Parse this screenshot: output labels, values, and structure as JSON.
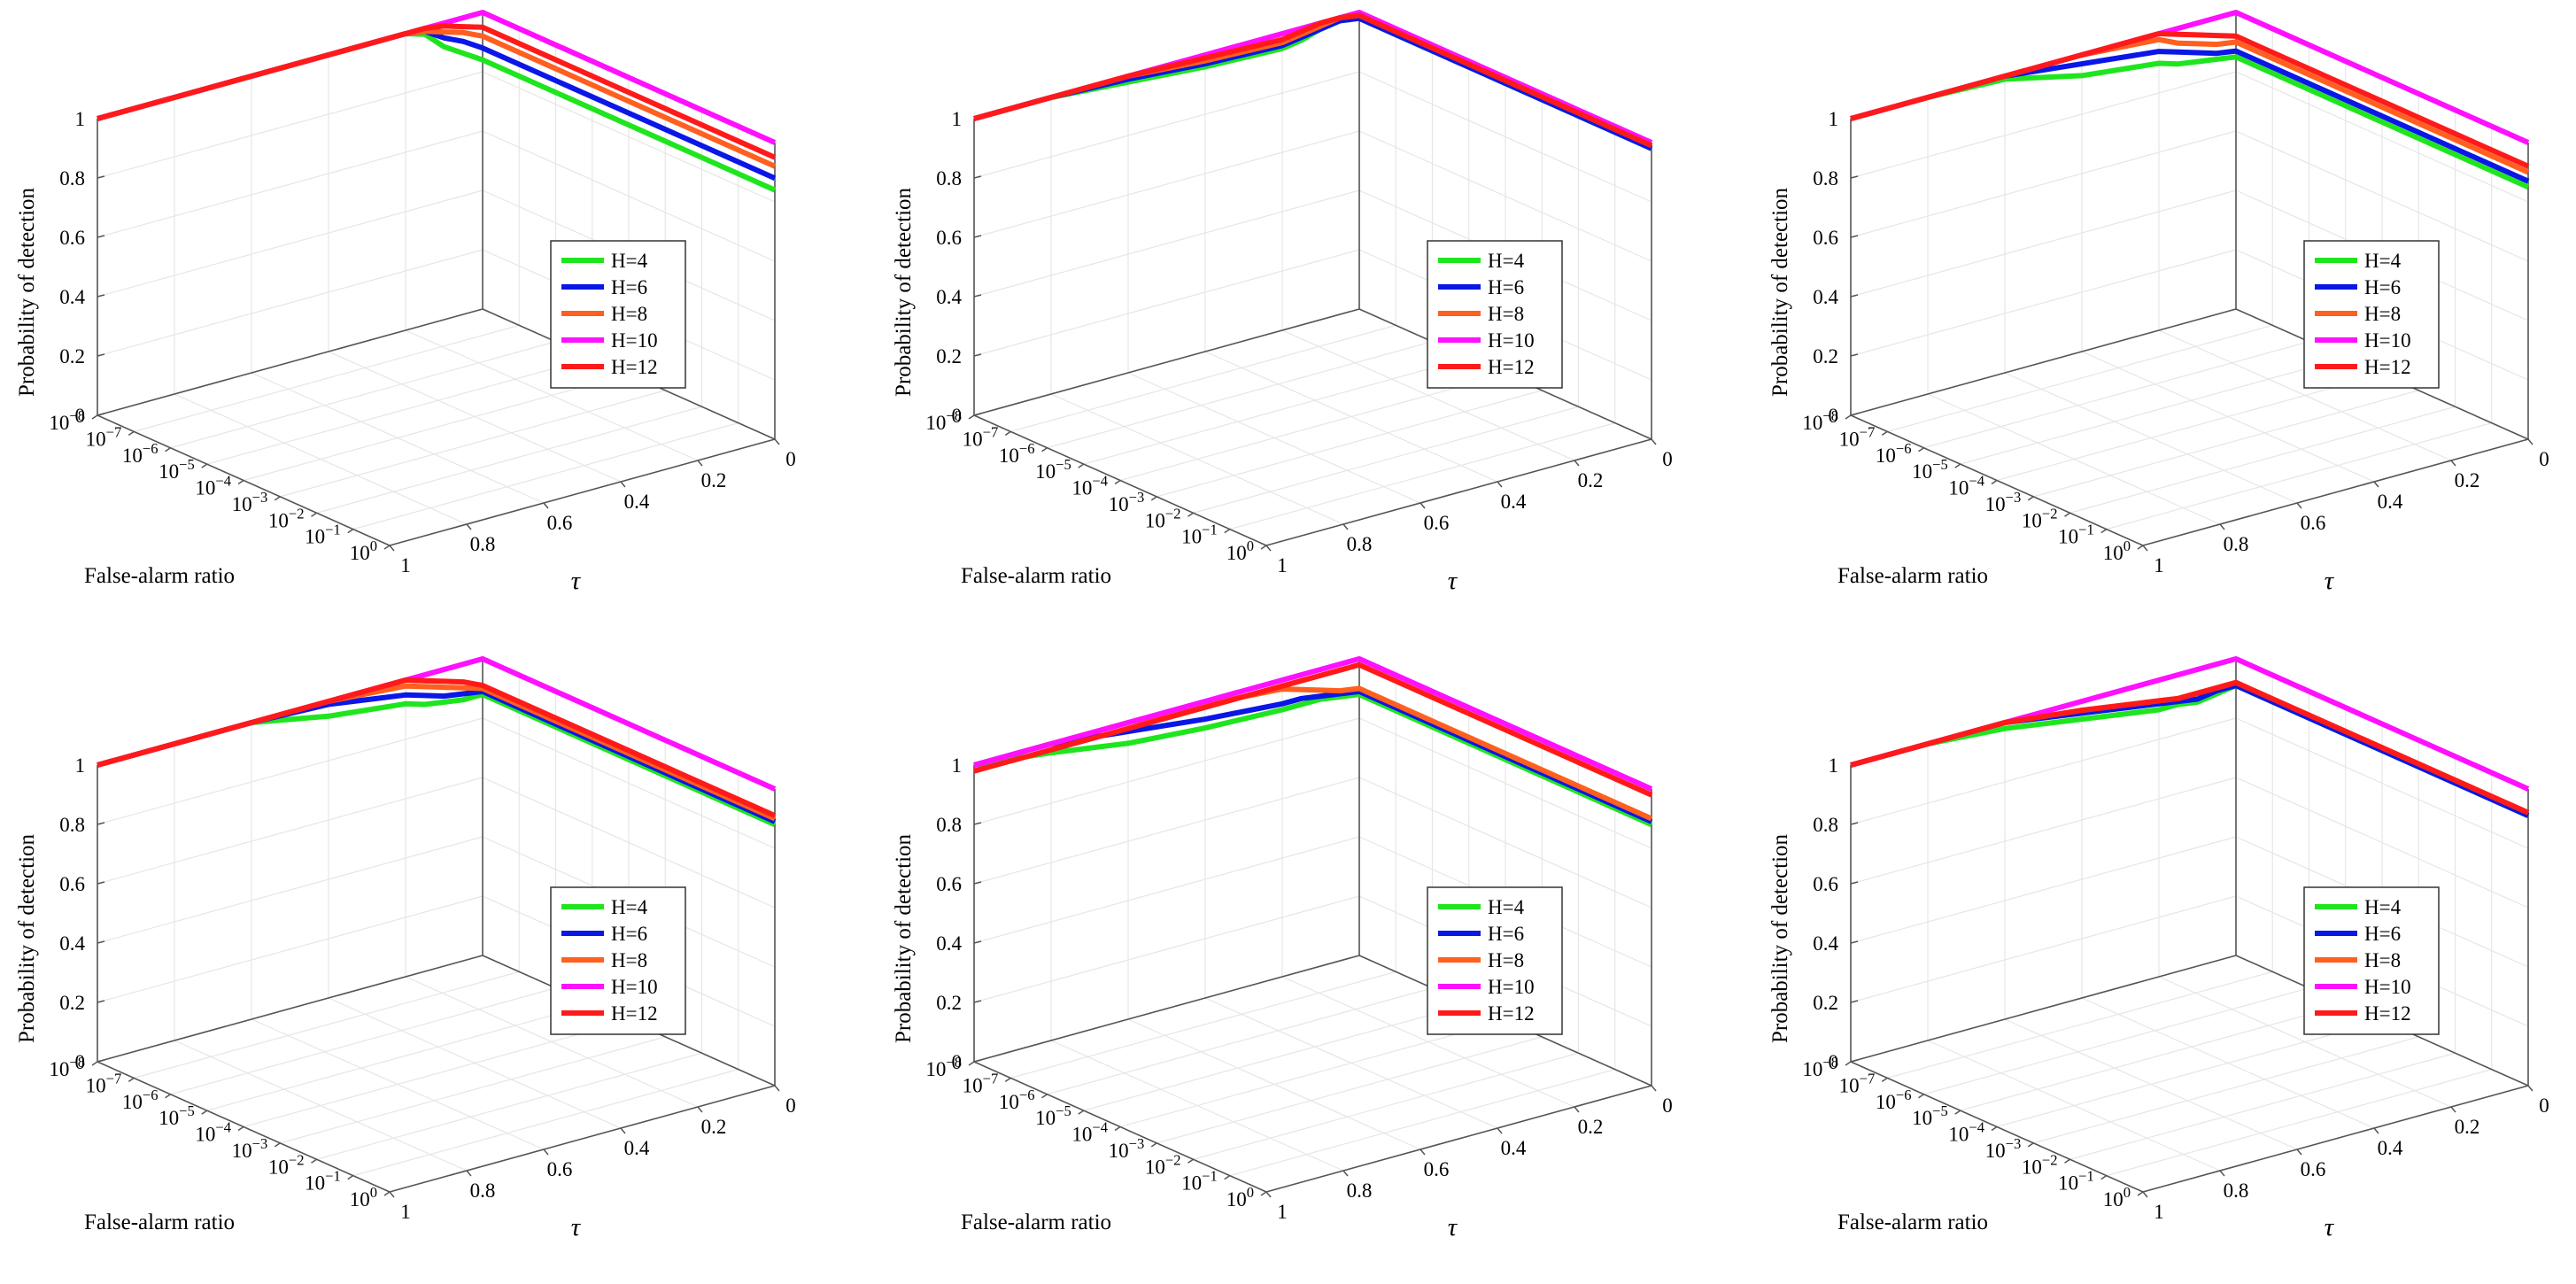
{
  "figure": {
    "background": "#ffffff"
  },
  "chart_data": [
    {
      "type": "line",
      "panel": "a",
      "title": "",
      "zlabel": "Probability of detection",
      "xlabel": "False-alarm ratio",
      "ylabel": "τ",
      "xscale": "log",
      "xlim": [
        1e-08,
        1
      ],
      "ylim": [
        0,
        1
      ],
      "zlim": [
        0,
        1
      ],
      "xticks": [
        "10^-8",
        "10^-7",
        "10^-6",
        "10^-5",
        "10^-4",
        "10^-3",
        "10^-2",
        "10^-1",
        "10^0"
      ],
      "yticks": [
        "0",
        "0.2",
        "0.4",
        "0.6",
        "0.8",
        "1"
      ],
      "zticks": [
        "0",
        "0.2",
        "0.4",
        "0.6",
        "0.8",
        "1"
      ],
      "legend_position": "center-right",
      "series": [
        {
          "name": "H=4",
          "color": "#1fe51f",
          "tau": [
            1,
            0.8,
            0.6,
            0.4,
            0.2,
            0.15,
            0.1,
            0.05,
            0
          ],
          "pd": [
            1,
            1,
            1,
            1,
            1,
            0.98,
            0.92,
            0.88,
            0.84
          ]
        },
        {
          "name": "H=6",
          "color": "#0a17e6",
          "tau": [
            1,
            0.8,
            0.6,
            0.4,
            0.2,
            0.15,
            0.1,
            0.05,
            0
          ],
          "pd": [
            1,
            1,
            1,
            1,
            1,
            0.99,
            0.95,
            0.92,
            0.88
          ]
        },
        {
          "name": "H=8",
          "color": "#ff5f1f",
          "tau": [
            1,
            0.8,
            0.6,
            0.4,
            0.2,
            0.15,
            0.1,
            0.05,
            0
          ],
          "pd": [
            1,
            1,
            1,
            1,
            1,
            0.99,
            0.97,
            0.95,
            0.92
          ]
        },
        {
          "name": "H=10",
          "color": "#ff10ff",
          "tau": [
            1,
            0.8,
            0.6,
            0.4,
            0.2,
            0.15,
            0.1,
            0.05,
            0
          ],
          "pd": [
            1,
            1,
            1,
            1,
            1,
            1,
            1,
            1,
            1
          ]
        },
        {
          "name": "H=12",
          "color": "#ff1a1a",
          "tau": [
            1,
            0.8,
            0.6,
            0.4,
            0.2,
            0.15,
            0.1,
            0.05,
            0
          ],
          "pd": [
            1,
            1,
            1,
            1,
            1,
            1,
            0.99,
            0.97,
            0.95
          ]
        }
      ]
    },
    {
      "type": "line",
      "panel": "b",
      "title": "",
      "zlabel": "Probability of detection",
      "xlabel": "False-alarm ratio",
      "ylabel": "τ",
      "xscale": "log",
      "xlim": [
        1e-08,
        1
      ],
      "ylim": [
        0,
        1
      ],
      "zlim": [
        0,
        1
      ],
      "xticks": [
        "10^-8",
        "10^-7",
        "10^-6",
        "10^-5",
        "10^-4",
        "10^-3",
        "10^-2",
        "10^-1",
        "10^0"
      ],
      "yticks": [
        "0",
        "0.2",
        "0.4",
        "0.6",
        "0.8",
        "1"
      ],
      "zticks": [
        "0",
        "0.2",
        "0.4",
        "0.6",
        "0.8",
        "1"
      ],
      "legend_position": "center-right",
      "series": [
        {
          "name": "H=4",
          "color": "#1fe51f",
          "tau": [
            1,
            0.8,
            0.6,
            0.4,
            0.2,
            0.15,
            0.1,
            0.05,
            0
          ],
          "pd": [
            1,
            1,
            0.98,
            0.96,
            0.95,
            0.96,
            0.98,
            0.99,
            0.98
          ]
        },
        {
          "name": "H=6",
          "color": "#0a17e6",
          "tau": [
            1,
            0.8,
            0.6,
            0.4,
            0.2,
            0.15,
            0.1,
            0.05,
            0
          ],
          "pd": [
            1,
            1,
            0.99,
            0.97,
            0.96,
            0.97,
            0.98,
            0.99,
            0.98
          ]
        },
        {
          "name": "H=8",
          "color": "#ff5f1f",
          "tau": [
            1,
            0.8,
            0.6,
            0.4,
            0.2,
            0.15,
            0.1,
            0.05,
            0
          ],
          "pd": [
            1,
            1,
            1,
            0.98,
            0.97,
            0.98,
            0.99,
            1,
            0.99
          ]
        },
        {
          "name": "H=10",
          "color": "#ff10ff",
          "tau": [
            1,
            0.8,
            0.6,
            0.4,
            0.2,
            0.15,
            0.1,
            0.05,
            0
          ],
          "pd": [
            1,
            1,
            1,
            1,
            1,
            1,
            1,
            1,
            1
          ]
        },
        {
          "name": "H=12",
          "color": "#ff1a1a",
          "tau": [
            1,
            0.8,
            0.6,
            0.4,
            0.2,
            0.15,
            0.1,
            0.05,
            0
          ],
          "pd": [
            1,
            1,
            1,
            0.99,
            0.98,
            0.99,
            1,
            1,
            0.99
          ]
        }
      ]
    },
    {
      "type": "line",
      "panel": "c",
      "title": "",
      "zlabel": "Probability of detection",
      "xlabel": "False-alarm ratio",
      "ylabel": "τ",
      "xscale": "log",
      "xlim": [
        1e-08,
        1
      ],
      "ylim": [
        0,
        1
      ],
      "zlim": [
        0,
        1
      ],
      "xticks": [
        "10^-8",
        "10^-7",
        "10^-6",
        "10^-5",
        "10^-4",
        "10^-3",
        "10^-2",
        "10^-1",
        "10^0"
      ],
      "yticks": [
        "0",
        "0.2",
        "0.4",
        "0.6",
        "0.8",
        "1"
      ],
      "zticks": [
        "0",
        "0.2",
        "0.4",
        "0.6",
        "0.8",
        "1"
      ],
      "legend_position": "center-right",
      "series": [
        {
          "name": "H=4",
          "color": "#1fe51f",
          "tau": [
            1,
            0.8,
            0.6,
            0.4,
            0.2,
            0.15,
            0.1,
            0.05,
            0
          ],
          "pd": [
            1,
            1,
            0.99,
            0.93,
            0.9,
            0.88,
            0.87,
            0.86,
            0.85
          ]
        },
        {
          "name": "H=6",
          "color": "#0a17e6",
          "tau": [
            1,
            0.8,
            0.6,
            0.4,
            0.2,
            0.15,
            0.1,
            0.05,
            0
          ],
          "pd": [
            1,
            1,
            1,
            0.97,
            0.94,
            0.92,
            0.9,
            0.88,
            0.87
          ]
        },
        {
          "name": "H=8",
          "color": "#ff5f1f",
          "tau": [
            1,
            0.8,
            0.6,
            0.4,
            0.2,
            0.15,
            0.1,
            0.05,
            0
          ],
          "pd": [
            1,
            1,
            1,
            1,
            0.98,
            0.95,
            0.93,
            0.91,
            0.9
          ]
        },
        {
          "name": "H=10",
          "color": "#ff10ff",
          "tau": [
            1,
            0.8,
            0.6,
            0.4,
            0.2,
            0.15,
            0.1,
            0.05,
            0
          ],
          "pd": [
            1,
            1,
            1,
            1,
            1,
            1,
            1,
            1,
            1
          ]
        },
        {
          "name": "H=12",
          "color": "#ff1a1a",
          "tau": [
            1,
            0.8,
            0.6,
            0.4,
            0.2,
            0.15,
            0.1,
            0.05,
            0
          ],
          "pd": [
            1,
            1,
            1,
            1,
            1,
            0.98,
            0.96,
            0.94,
            0.92
          ]
        }
      ]
    },
    {
      "type": "line",
      "panel": "d",
      "title": "",
      "zlabel": "Probability of detection",
      "xlabel": "False-alarm ratio",
      "ylabel": "τ",
      "xscale": "log",
      "xlim": [
        1e-08,
        1
      ],
      "ylim": [
        0,
        1
      ],
      "zlim": [
        0,
        1
      ],
      "xticks": [
        "10^-8",
        "10^-7",
        "10^-6",
        "10^-5",
        "10^-4",
        "10^-3",
        "10^-2",
        "10^-1",
        "10^0"
      ],
      "yticks": [
        "0",
        "0.2",
        "0.4",
        "0.6",
        "0.8",
        "1"
      ],
      "zticks": [
        "0",
        "0.2",
        "0.4",
        "0.6",
        "0.8",
        "1"
      ],
      "legend_position": "center-right",
      "series": [
        {
          "name": "H=4",
          "color": "#1fe51f",
          "tau": [
            1,
            0.8,
            0.6,
            0.4,
            0.2,
            0.15,
            0.1,
            0.05,
            0
          ],
          "pd": [
            1,
            1,
            1,
            0.95,
            0.92,
            0.9,
            0.89,
            0.88,
            0.88
          ]
        },
        {
          "name": "H=6",
          "color": "#0a17e6",
          "tau": [
            1,
            0.8,
            0.6,
            0.4,
            0.2,
            0.15,
            0.1,
            0.05,
            0
          ],
          "pd": [
            1,
            1,
            1,
            0.99,
            0.95,
            0.93,
            0.91,
            0.9,
            0.89
          ]
        },
        {
          "name": "H=8",
          "color": "#ff5f1f",
          "tau": [
            1,
            0.8,
            0.6,
            0.4,
            0.2,
            0.15,
            0.1,
            0.05,
            0
          ],
          "pd": [
            1,
            1,
            1,
            1,
            0.98,
            0.96,
            0.94,
            0.92,
            0.9
          ]
        },
        {
          "name": "H=10",
          "color": "#ff10ff",
          "tau": [
            1,
            0.8,
            0.6,
            0.4,
            0.2,
            0.15,
            0.1,
            0.05,
            0
          ],
          "pd": [
            1,
            1,
            1,
            1,
            1,
            1,
            1,
            1,
            1
          ]
        },
        {
          "name": "H=12",
          "color": "#ff1a1a",
          "tau": [
            1,
            0.8,
            0.6,
            0.4,
            0.2,
            0.15,
            0.1,
            0.05,
            0
          ],
          "pd": [
            1,
            1,
            1,
            1,
            1,
            0.98,
            0.96,
            0.94,
            0.91
          ]
        }
      ]
    },
    {
      "type": "line",
      "panel": "e",
      "title": "",
      "zlabel": "Probability of detection",
      "xlabel": "False-alarm ratio",
      "ylabel": "τ",
      "xscale": "log",
      "xlim": [
        1e-08,
        1
      ],
      "ylim": [
        0,
        1
      ],
      "zlim": [
        0,
        1
      ],
      "xticks": [
        "10^-8",
        "10^-7",
        "10^-6",
        "10^-5",
        "10^-4",
        "10^-3",
        "10^-2",
        "10^-1",
        "10^0"
      ],
      "yticks": [
        "0",
        "0.2",
        "0.4",
        "0.6",
        "0.8",
        "1"
      ],
      "zticks": [
        "0",
        "0.2",
        "0.4",
        "0.6",
        "0.8",
        "1"
      ],
      "legend_position": "center-right",
      "series": [
        {
          "name": "H=4",
          "color": "#1fe51f",
          "tau": [
            1,
            0.8,
            0.6,
            0.4,
            0.2,
            0.15,
            0.1,
            0.05,
            0
          ],
          "pd": [
            1,
            0.97,
            0.93,
            0.91,
            0.9,
            0.9,
            0.9,
            0.89,
            0.88
          ]
        },
        {
          "name": "H=6",
          "color": "#0a17e6",
          "tau": [
            1,
            0.8,
            0.6,
            0.4,
            0.2,
            0.15,
            0.1,
            0.05,
            0
          ],
          "pd": [
            1,
            1,
            0.97,
            0.94,
            0.92,
            0.92,
            0.91,
            0.9,
            0.89
          ]
        },
        {
          "name": "H=8",
          "color": "#ff5f1f",
          "tau": [
            1,
            0.8,
            0.6,
            0.4,
            0.2,
            0.15,
            0.1,
            0.05,
            0
          ],
          "pd": [
            1,
            1,
            1,
            0.99,
            0.97,
            0.95,
            0.93,
            0.91,
            0.9
          ]
        },
        {
          "name": "H=10",
          "color": "#ff10ff",
          "tau": [
            1,
            0.8,
            0.6,
            0.4,
            0.2,
            0.15,
            0.1,
            0.05,
            0
          ],
          "pd": [
            1,
            1,
            1,
            1,
            1,
            1,
            1,
            1,
            1
          ]
        },
        {
          "name": "H=12",
          "color": "#ff1a1a",
          "tau": [
            1,
            0.8,
            0.6,
            0.4,
            0.2,
            0.15,
            0.1,
            0.05,
            0
          ],
          "pd": [
            0.98,
            0.98,
            0.98,
            0.98,
            0.98,
            0.98,
            0.98,
            0.98,
            0.98
          ]
        }
      ]
    },
    {
      "type": "line",
      "panel": "f",
      "title": "",
      "zlabel": "Probability of detection",
      "xlabel": "False-alarm ratio",
      "ylabel": "τ",
      "xscale": "log",
      "xlim": [
        1e-08,
        1
      ],
      "ylim": [
        0,
        1
      ],
      "zlim": [
        0,
        1
      ],
      "xticks": [
        "10^-8",
        "10^-7",
        "10^-6",
        "10^-5",
        "10^-4",
        "10^-3",
        "10^-2",
        "10^-1",
        "10^0"
      ],
      "yticks": [
        "0",
        "0.2",
        "0.4",
        "0.6",
        "0.8",
        "1"
      ],
      "zticks": [
        "0",
        "0.2",
        "0.4",
        "0.6",
        "0.8",
        "1"
      ],
      "legend_position": "center-right",
      "series": [
        {
          "name": "H=4",
          "color": "#1fe51f",
          "tau": [
            1,
            0.8,
            0.6,
            0.4,
            0.2,
            0.15,
            0.1,
            0.05,
            0
          ],
          "pd": [
            1,
            1,
            0.98,
            0.94,
            0.9,
            0.9,
            0.89,
            0.9,
            0.91
          ]
        },
        {
          "name": "H=6",
          "color": "#0a17e6",
          "tau": [
            1,
            0.8,
            0.6,
            0.4,
            0.2,
            0.15,
            0.1,
            0.05,
            0
          ],
          "pd": [
            1,
            1,
            1,
            0.96,
            0.92,
            0.91,
            0.9,
            0.91,
            0.91
          ]
        },
        {
          "name": "H=8",
          "color": "#ff5f1f",
          "tau": [
            1,
            0.8,
            0.6,
            0.4,
            0.2,
            0.15,
            0.1,
            0.05,
            0
          ],
          "pd": [
            1,
            1,
            1,
            0.97,
            0.93,
            0.92,
            0.92,
            0.92,
            0.92
          ]
        },
        {
          "name": "H=10",
          "color": "#ff10ff",
          "tau": [
            1,
            0.8,
            0.6,
            0.4,
            0.2,
            0.15,
            0.1,
            0.05,
            0
          ],
          "pd": [
            1,
            1,
            1,
            1,
            1,
            1,
            1,
            1,
            1
          ]
        },
        {
          "name": "H=12",
          "color": "#ff1a1a",
          "tau": [
            1,
            0.8,
            0.6,
            0.4,
            0.2,
            0.15,
            0.1,
            0.05,
            0
          ],
          "pd": [
            1,
            1,
            1,
            0.97,
            0.93,
            0.92,
            0.92,
            0.92,
            0.92
          ]
        }
      ]
    }
  ]
}
